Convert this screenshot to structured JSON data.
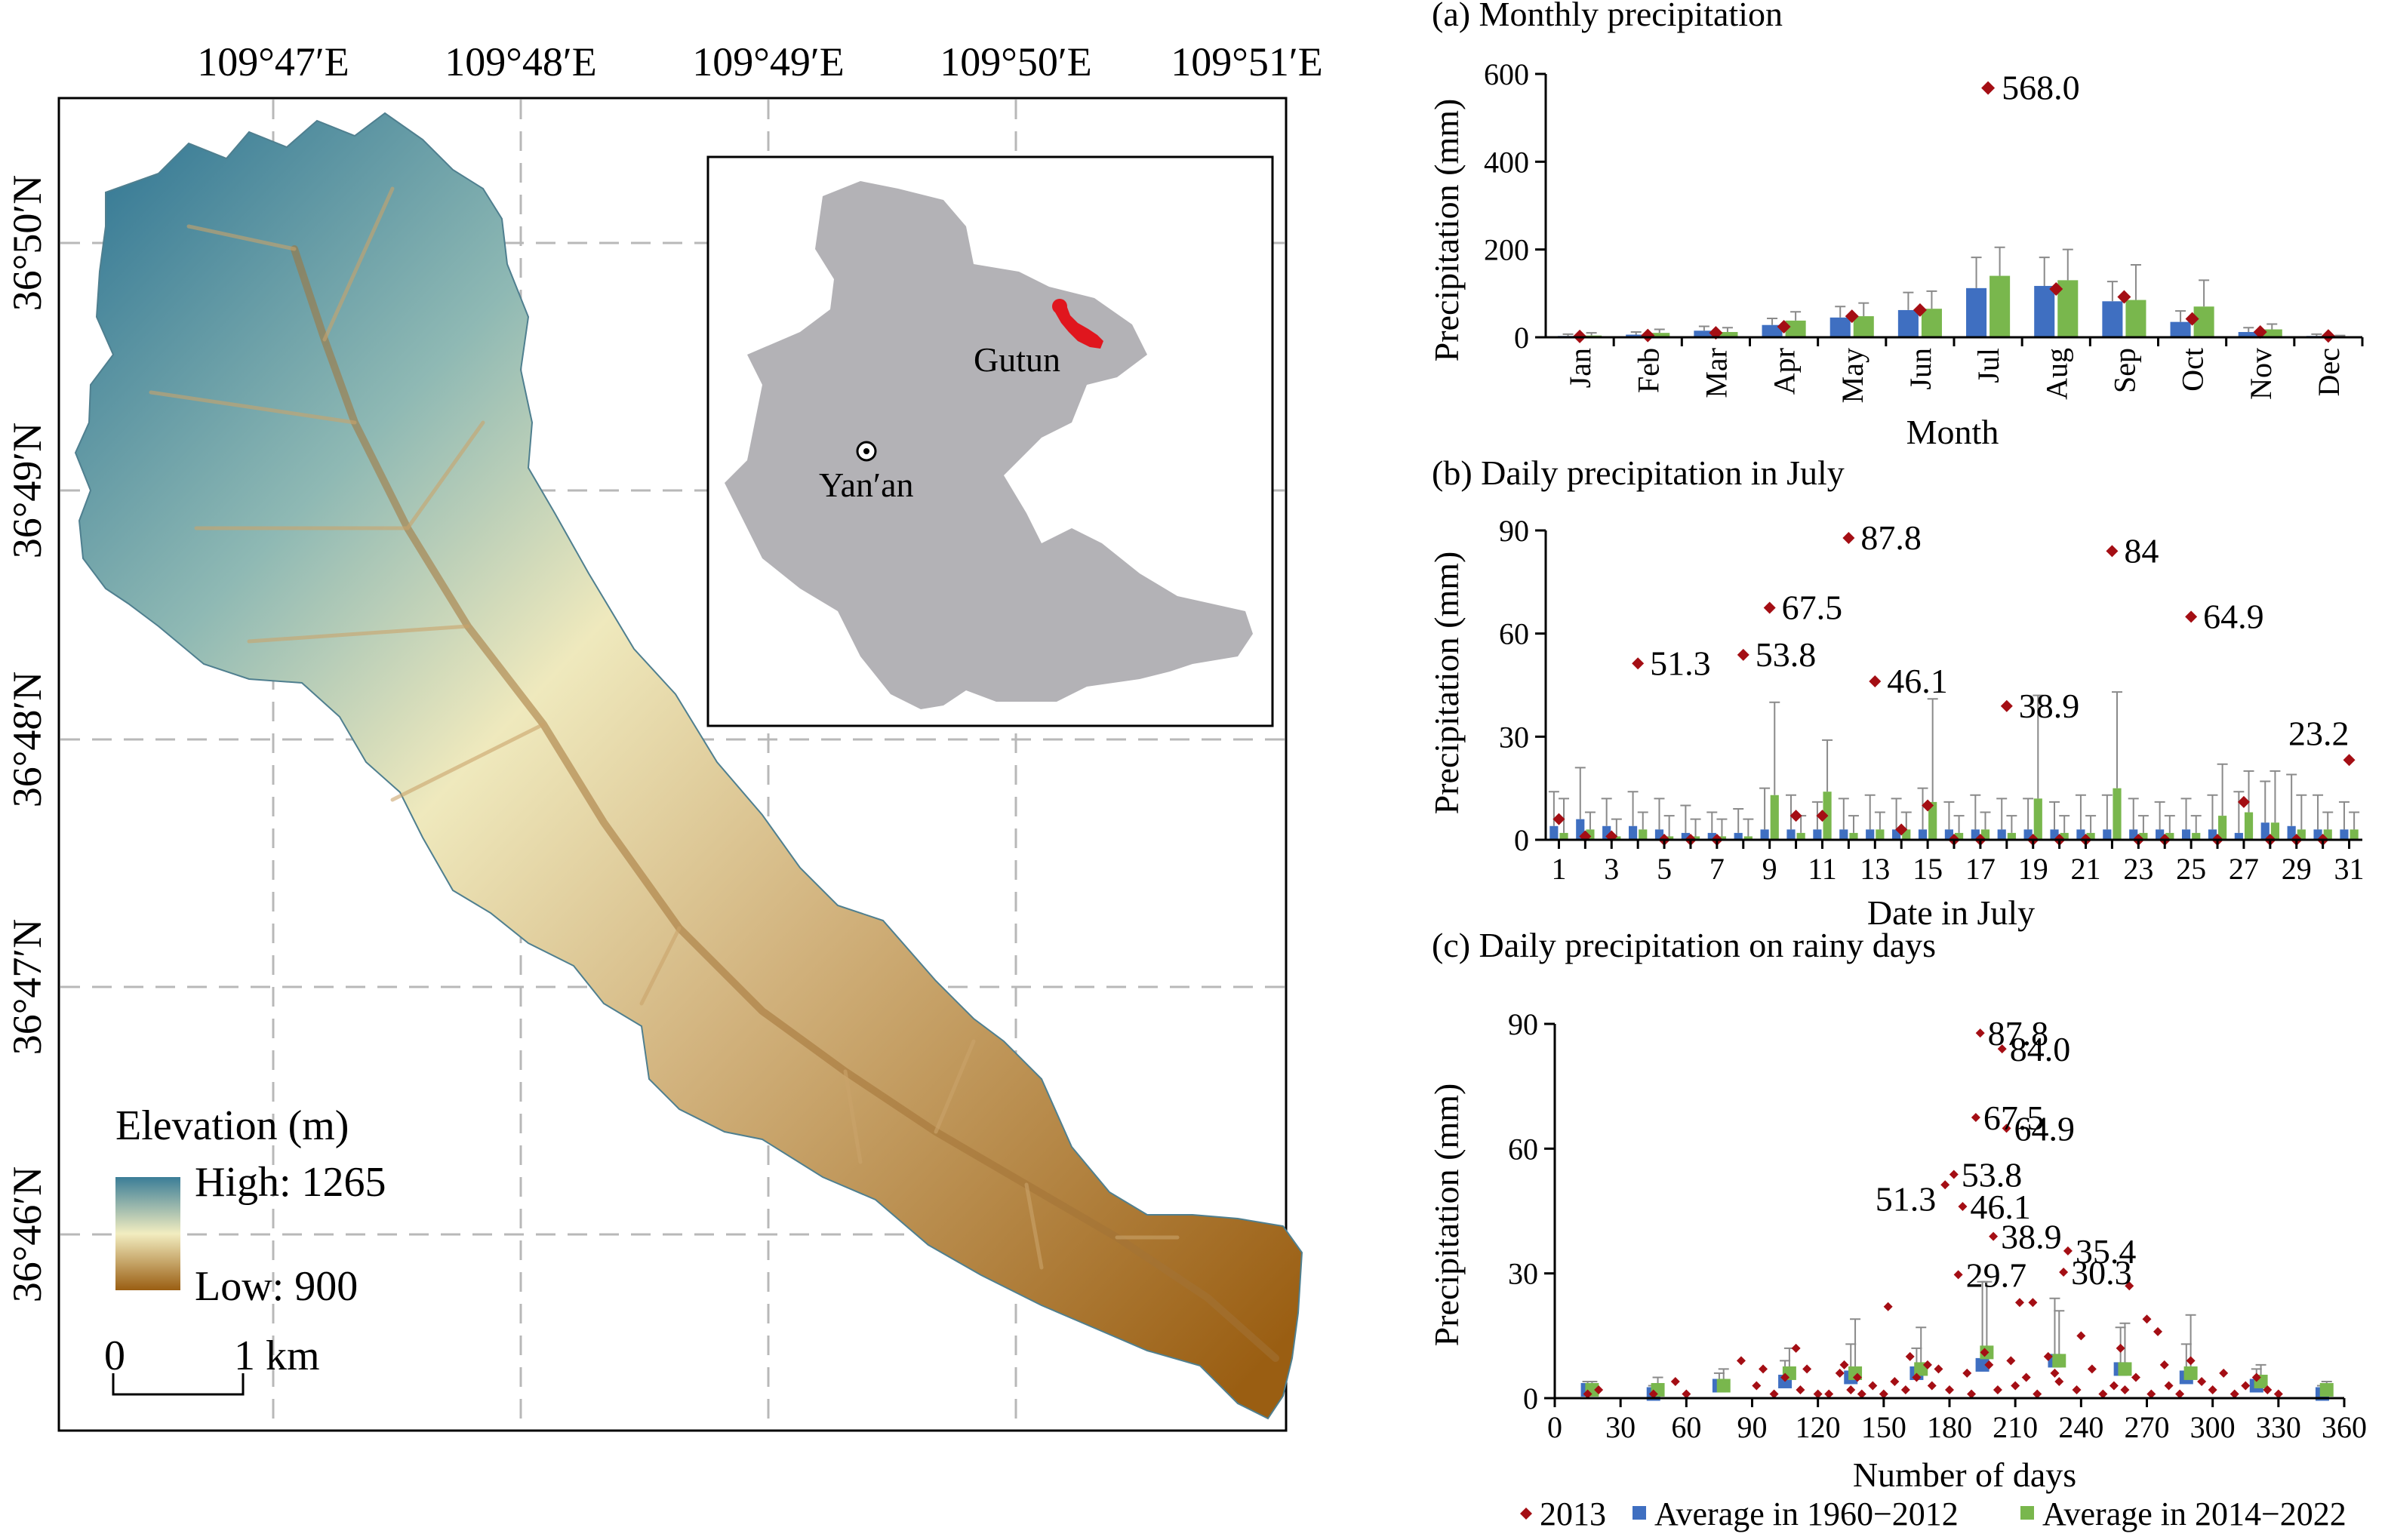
{
  "map": {
    "longitude_labels": [
      "109°47′E",
      "109°48′E",
      "109°49′E",
      "109°50′E",
      "109°51′E"
    ],
    "latitude_labels": [
      "36°50′N",
      "36°49′N",
      "36°48′N",
      "36°47′N",
      "36°46′N"
    ],
    "legend": {
      "title": "Elevation (m)",
      "high": "High: 1265",
      "low": "Low: 900",
      "colors": [
        "#3b7d97",
        "#f2edc0",
        "#9a5e12"
      ]
    },
    "scalebar": {
      "start": "0",
      "end": "1 km"
    },
    "inset": {
      "city": "Yan′an",
      "site": "Gutun",
      "site_color": "#e0161e",
      "land_color": "#b3b2b6"
    }
  },
  "colors": {
    "red": "#a40e14",
    "blue": "#3f6fc1",
    "green": "#79b74d"
  },
  "legend": {
    "items": [
      {
        "label": "2013",
        "marker": "diamond",
        "color": "#a40e14"
      },
      {
        "label": "Average in 1960−2012",
        "marker": "square",
        "color": "#3f6fc1"
      },
      {
        "label": "Average in 2014−2022",
        "marker": "square",
        "color": "#79b74d"
      }
    ]
  },
  "chart_data": [
    {
      "type": "bar",
      "title": "(a) Monthly precipitation",
      "xlabel": "Month",
      "ylabel": "Precipitation (mm)",
      "ylim": [
        0,
        600
      ],
      "yticks": [
        0,
        200,
        400,
        600
      ],
      "categories": [
        "Jan",
        "Feb",
        "Mar",
        "Apr",
        "May",
        "Jun",
        "Jul",
        "Aug",
        "Sep",
        "Oct",
        "Nov",
        "Dec"
      ],
      "series": [
        {
          "name": "2013",
          "type": "scatter",
          "values": [
            2,
            4,
            10,
            24,
            48,
            62,
            568,
            110,
            92,
            42,
            12,
            3
          ]
        },
        {
          "name": "Average in 1960−2012",
          "values": [
            3,
            6,
            15,
            28,
            45,
            62,
            112,
            117,
            82,
            35,
            12,
            3
          ],
          "error": [
            4,
            6,
            10,
            15,
            25,
            40,
            70,
            65,
            45,
            25,
            10,
            4
          ]
        },
        {
          "name": "Average in 2014−2022",
          "values": [
            4,
            10,
            12,
            38,
            48,
            65,
            140,
            130,
            85,
            70,
            18,
            1
          ],
          "error": [
            6,
            8,
            10,
            20,
            30,
            40,
            65,
            70,
            80,
            60,
            12,
            3
          ]
        }
      ],
      "annotations": [
        {
          "x": "Jul",
          "y": 568,
          "text": "568.0"
        }
      ]
    },
    {
      "type": "bar",
      "title": "(b) Daily precipitation in July",
      "xlabel": "Date in July",
      "ylabel": "Precipitation (mm)",
      "ylim": [
        0,
        90
      ],
      "yticks": [
        0,
        30,
        60,
        90
      ],
      "categories": [
        1,
        2,
        3,
        4,
        5,
        6,
        7,
        8,
        9,
        10,
        11,
        12,
        13,
        14,
        15,
        16,
        17,
        18,
        19,
        20,
        21,
        22,
        23,
        24,
        25,
        26,
        27,
        28,
        29,
        30,
        31
      ],
      "xtick_labels": [
        "1",
        "3",
        "5",
        "7",
        "9",
        "11",
        "13",
        "15",
        "17",
        "19",
        "21",
        "23",
        "25",
        "27",
        "29",
        "31"
      ],
      "series": [
        {
          "name": "2013",
          "type": "scatter",
          "values": [
            6,
            1,
            1,
            51.3,
            0,
            0,
            0,
            53.8,
            67.5,
            7,
            7,
            87.8,
            46.1,
            3,
            10,
            0,
            0,
            38.9,
            0,
            0,
            0,
            84,
            0,
            0,
            64.9,
            0,
            11,
            0,
            0,
            0,
            23.2
          ]
        },
        {
          "name": "Average in 1960−2012",
          "values": [
            4,
            6,
            4,
            4,
            3,
            2,
            2,
            2,
            3,
            3,
            3,
            3,
            3,
            3,
            3,
            3,
            3,
            3,
            3,
            3,
            3,
            3,
            3,
            3,
            3,
            3,
            2,
            5,
            4,
            3,
            3
          ],
          "error": [
            10,
            15,
            8,
            10,
            9,
            8,
            6,
            7,
            12,
            10,
            8,
            9,
            10,
            9,
            12,
            8,
            10,
            9,
            9,
            8,
            10,
            10,
            9,
            8,
            9,
            10,
            12,
            12,
            15,
            10,
            8
          ]
        },
        {
          "name": "Average in 2014−2022",
          "values": [
            2,
            3,
            1,
            3,
            1,
            1,
            1,
            1,
            13,
            2,
            14,
            2,
            3,
            3,
            11,
            2,
            3,
            2,
            12,
            2,
            2,
            15,
            2,
            2,
            2,
            7,
            8,
            5,
            3,
            3,
            3
          ],
          "error": [
            10,
            5,
            5,
            5,
            6,
            5,
            5,
            5,
            27,
            5,
            15,
            5,
            5,
            5,
            30,
            5,
            5,
            5,
            30,
            5,
            5,
            28,
            5,
            5,
            5,
            15,
            12,
            15,
            10,
            5,
            5
          ]
        }
      ],
      "annotations": [
        {
          "x": 4,
          "y": 51.3,
          "text": "51.3"
        },
        {
          "x": 8,
          "y": 53.8,
          "text": "53.8"
        },
        {
          "x": 9,
          "y": 67.5,
          "text": "67.5"
        },
        {
          "x": 12,
          "y": 87.8,
          "text": "87.8"
        },
        {
          "x": 13,
          "y": 46.1,
          "text": "46.1"
        },
        {
          "x": 18,
          "y": 38.9,
          "text": "38.9"
        },
        {
          "x": 22,
          "y": 84,
          "text": "84"
        },
        {
          "x": 25,
          "y": 64.9,
          "text": "64.9"
        },
        {
          "x": 31,
          "y": 23.2,
          "text": "23.2"
        }
      ]
    },
    {
      "type": "scatter",
      "title": "(c) Daily precipitation on rainy days",
      "xlabel": "Number of days",
      "ylabel": "Precipitation (mm)",
      "xlim": [
        0,
        360
      ],
      "ylim": [
        0,
        90
      ],
      "xticks": [
        0,
        30,
        60,
        90,
        120,
        150,
        180,
        210,
        240,
        270,
        300,
        330,
        360
      ],
      "yticks": [
        0,
        30,
        60,
        90
      ],
      "series": [
        {
          "name": "2013",
          "type": "scatter",
          "points": [
            [
              15,
              1
            ],
            [
              20,
              2
            ],
            [
              45,
              1
            ],
            [
              55,
              4
            ],
            [
              60,
              1
            ],
            [
              85,
              9
            ],
            [
              92,
              3
            ],
            [
              95,
              7
            ],
            [
              100,
              1
            ],
            [
              105,
              5
            ],
            [
              110,
              12
            ],
            [
              112,
              2
            ],
            [
              115,
              7
            ],
            [
              120,
              1
            ],
            [
              125,
              1
            ],
            [
              130,
              6
            ],
            [
              132,
              8
            ],
            [
              135,
              2
            ],
            [
              138,
              5
            ],
            [
              140,
              1
            ],
            [
              145,
              3
            ],
            [
              150,
              1
            ],
            [
              152,
              22
            ],
            [
              155,
              4
            ],
            [
              160,
              2
            ],
            [
              162,
              10
            ],
            [
              165,
              5
            ],
            [
              170,
              8
            ],
            [
              172,
              3
            ],
            [
              175,
              7
            ],
            [
              178,
              51.3
            ],
            [
              180,
              2
            ],
            [
              182,
              53.8
            ],
            [
              184,
              29.7
            ],
            [
              186,
              46.1
            ],
            [
              188,
              6
            ],
            [
              190,
              1
            ],
            [
              192,
              67.5
            ],
            [
              194,
              87.8
            ],
            [
              196,
              11
            ],
            [
              198,
              8
            ],
            [
              200,
              38.9
            ],
            [
              202,
              2
            ],
            [
              204,
              84
            ],
            [
              206,
              64.9
            ],
            [
              208,
              9
            ],
            [
              210,
              3
            ],
            [
              212,
              23
            ],
            [
              215,
              5
            ],
            [
              218,
              23
            ],
            [
              220,
              1
            ],
            [
              225,
              10
            ],
            [
              228,
              6
            ],
            [
              230,
              4
            ],
            [
              232,
              30.3
            ],
            [
              234,
              35.4
            ],
            [
              238,
              2
            ],
            [
              240,
              15
            ],
            [
              245,
              7
            ],
            [
              250,
              1
            ],
            [
              255,
              3
            ],
            [
              258,
              12
            ],
            [
              260,
              2
            ],
            [
              262,
              27
            ],
            [
              265,
              5
            ],
            [
              270,
              19
            ],
            [
              272,
              1
            ],
            [
              275,
              16
            ],
            [
              278,
              8
            ],
            [
              280,
              3
            ],
            [
              285,
              1
            ],
            [
              290,
              9
            ],
            [
              295,
              4
            ],
            [
              300,
              2
            ],
            [
              305,
              6
            ],
            [
              310,
              1
            ],
            [
              315,
              3
            ],
            [
              320,
              5
            ],
            [
              325,
              2
            ],
            [
              330,
              1
            ]
          ]
        },
        {
          "name": "Average in 1960−2012",
          "points": [
            [
              15,
              2
            ],
            [
              45,
              1
            ],
            [
              75,
              3
            ],
            [
              105,
              4
            ],
            [
              135,
              5
            ],
            [
              165,
              6
            ],
            [
              195,
              8
            ],
            [
              228,
              9
            ],
            [
              258,
              7
            ],
            [
              288,
              5
            ],
            [
              320,
              3
            ],
            [
              350,
              1
            ]
          ],
          "error": [
            2,
            2,
            3,
            5,
            8,
            6,
            20,
            15,
            10,
            8,
            4,
            2
          ]
        },
        {
          "name": "Average in 2014−2022",
          "points": [
            [
              17,
              2
            ],
            [
              47,
              2
            ],
            [
              77,
              3
            ],
            [
              107,
              6
            ],
            [
              137,
              6
            ],
            [
              167,
              7
            ],
            [
              197,
              11
            ],
            [
              230,
              9
            ],
            [
              260,
              7
            ],
            [
              290,
              6
            ],
            [
              322,
              4
            ],
            [
              352,
              2
            ]
          ],
          "error": [
            2,
            3,
            4,
            6,
            13,
            10,
            17,
            12,
            11,
            14,
            4,
            2
          ]
        }
      ],
      "annotations": [
        {
          "x": 194,
          "y": 87.8,
          "text": "87.8"
        },
        {
          "x": 204,
          "y": 84.0,
          "text": "84.0"
        },
        {
          "x": 192,
          "y": 67.5,
          "text": "67.5"
        },
        {
          "x": 206,
          "y": 64.9,
          "text": "64.9"
        },
        {
          "x": 182,
          "y": 53.8,
          "text": "53.8"
        },
        {
          "x": 178,
          "y": 51.3,
          "text": "51.3"
        },
        {
          "x": 186,
          "y": 46.1,
          "text": "46.1"
        },
        {
          "x": 200,
          "y": 38.9,
          "text": "38.9"
        },
        {
          "x": 234,
          "y": 35.4,
          "text": "35.4"
        },
        {
          "x": 232,
          "y": 30.3,
          "text": "30.3"
        },
        {
          "x": 184,
          "y": 29.7,
          "text": "29.7"
        }
      ]
    }
  ]
}
